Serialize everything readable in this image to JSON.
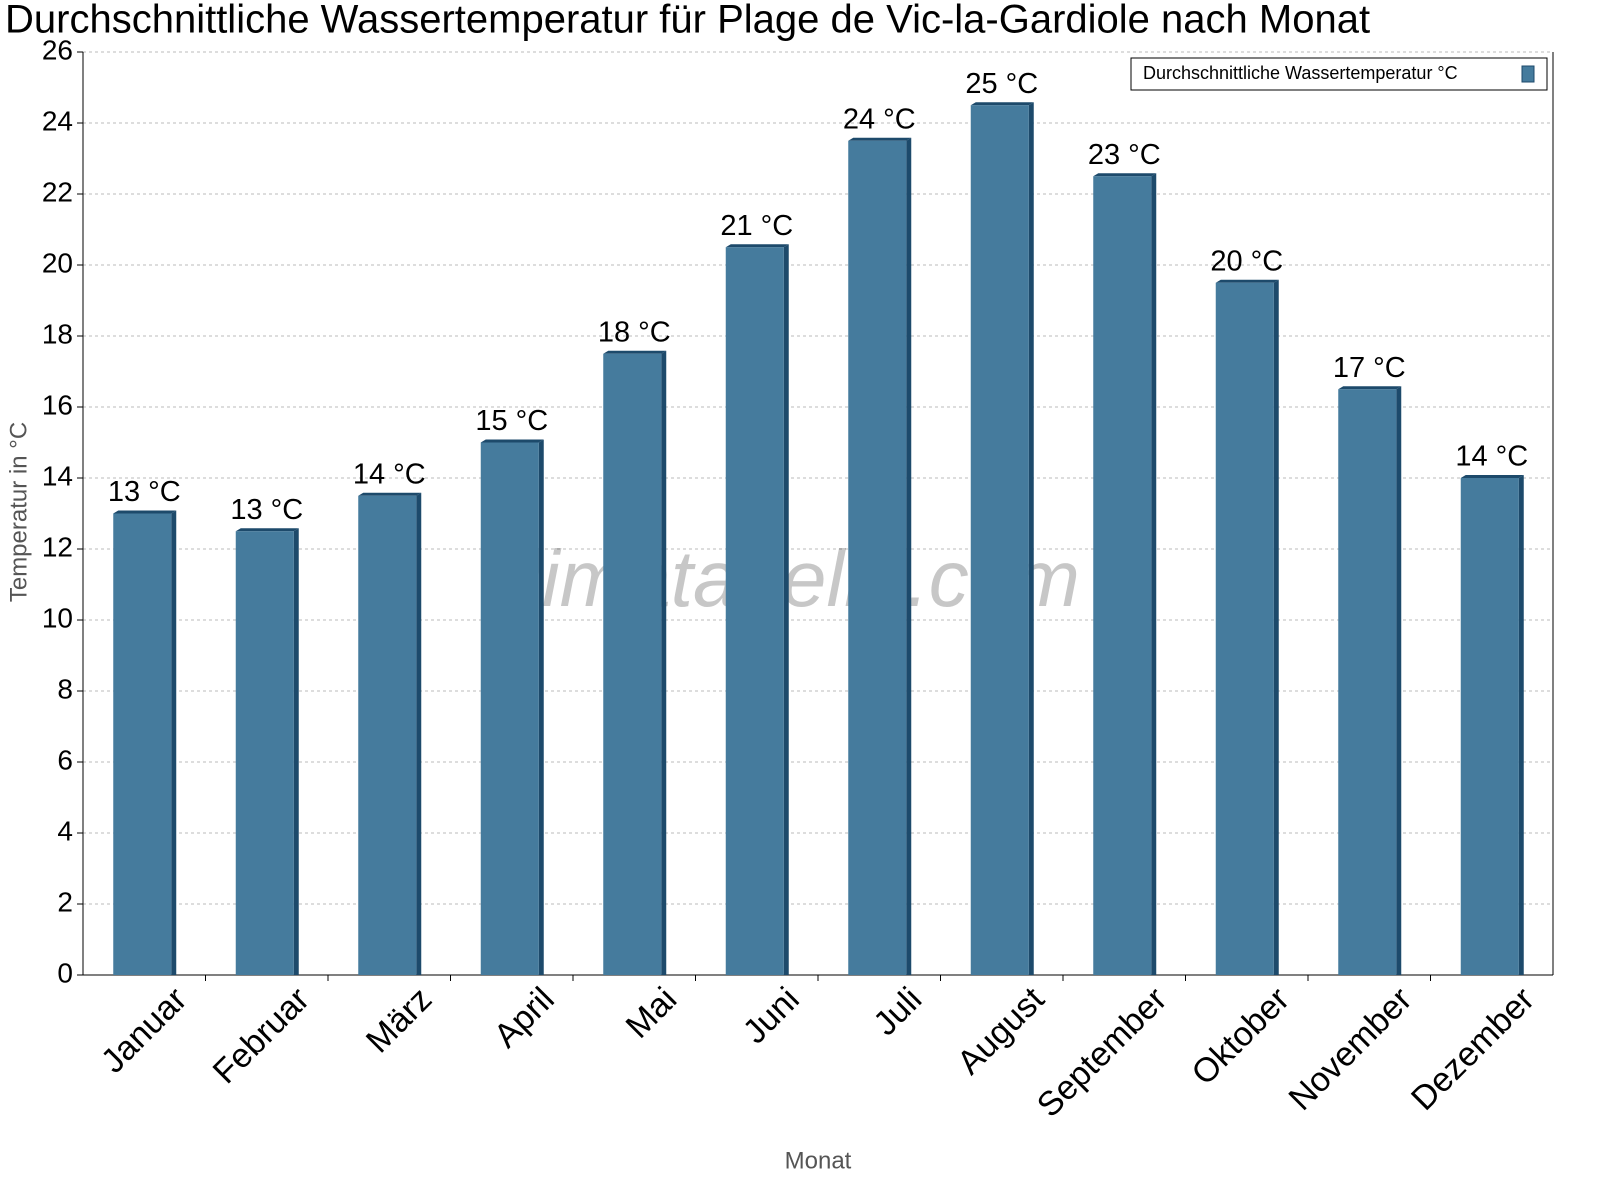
{
  "chart_data": {
    "type": "bar",
    "title": "Durchschnittliche Wassertemperatur für Plage de Vic-la-Gardiole nach Monat",
    "x_label": "Monat",
    "y_label": "Temperatur in °C",
    "watermark": "klimatabelle.com",
    "categories": [
      "Januar",
      "Februar",
      "März",
      "April",
      "Mai",
      "Juni",
      "Juli",
      "August",
      "September",
      "Oktober",
      "November",
      "Dezember"
    ],
    "series": [
      {
        "name": "Durchschnittliche Wassertemperatur °C",
        "color": "#457b9d",
        "values": [
          13,
          12.5,
          13.5,
          15,
          17.5,
          20.5,
          23.5,
          24.5,
          22.5,
          19.5,
          16.5,
          14
        ],
        "value_labels": [
          "13 °C",
          "13 °C",
          "14 °C",
          "15 °C",
          "18 °C",
          "21 °C",
          "24 °C",
          "25 °C",
          "23 °C",
          "20 °C",
          "17 °C",
          "14 °C"
        ]
      }
    ],
    "ylim": [
      0,
      26
    ],
    "yticks": [
      0,
      2,
      4,
      6,
      8,
      10,
      12,
      14,
      16,
      18,
      20,
      22,
      24,
      26
    ],
    "grid": true,
    "legend": "upper right"
  }
}
